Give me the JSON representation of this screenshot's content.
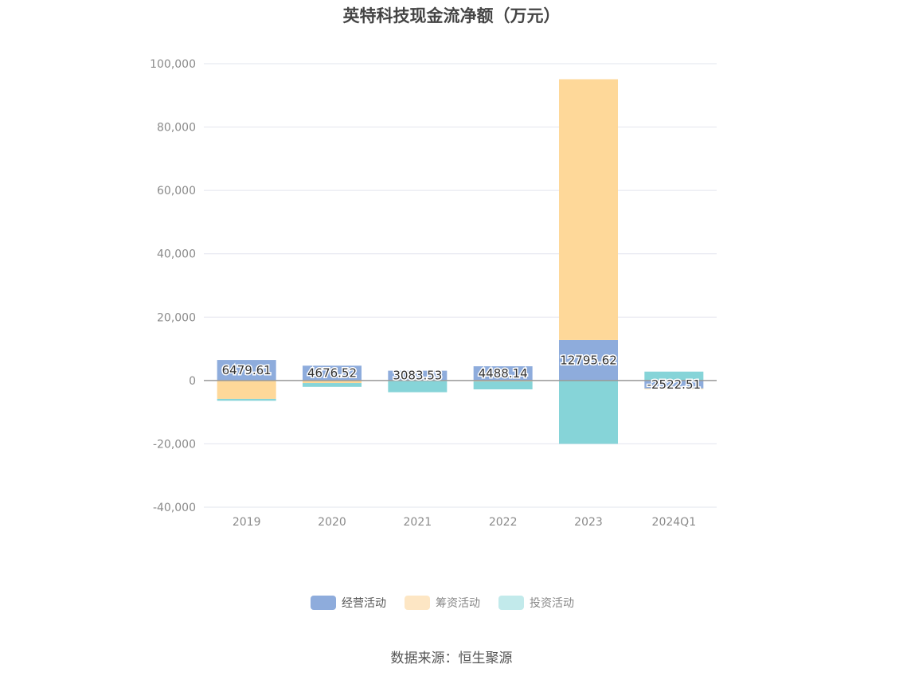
{
  "title": "英特科技现金流净额（万元）",
  "source_note": "数据来源：恒生聚源",
  "chart_data": {
    "type": "bar",
    "stacked": true,
    "title": "英特科技现金流净额（万元）",
    "xlabel": "",
    "ylabel": "",
    "categories": [
      "2019",
      "2020",
      "2021",
      "2022",
      "2023",
      "2024Q1"
    ],
    "ylim": [
      -40000,
      100000
    ],
    "yticks": [
      -40000,
      -20000,
      0,
      20000,
      40000,
      60000,
      80000,
      100000
    ],
    "ytick_labels": [
      "-40,000",
      "-20,000",
      "0",
      "20,000",
      "40,000",
      "60,000",
      "80,000",
      "100,000"
    ],
    "grid": true,
    "legend_position": "bottom-center",
    "series": [
      {
        "name": "经营活动",
        "color": "#8eacdc",
        "values": [
          6479.61,
          4676.52,
          3083.53,
          4488.14,
          12795.62,
          -2522.51
        ]
      },
      {
        "name": "筹资活动",
        "color": "#fed899",
        "values": [
          -5800,
          -800,
          -200,
          -300,
          82300,
          -200
        ]
      },
      {
        "name": "投资活动",
        "color": "#86d4d8",
        "values": [
          -600,
          -1200,
          -3500,
          -2500,
          -20000,
          2800
        ]
      }
    ],
    "data_labels": [
      "6479.61",
      "4676.52",
      "3083.53",
      "4488.14",
      "12795.62",
      "-2522.51"
    ]
  },
  "legend": [
    {
      "name": "经营活动",
      "swatch": "#8eacdc",
      "text_color": "#555555"
    },
    {
      "name": "筹资活动",
      "swatch": "#fde6c4",
      "text_color": "#888888"
    },
    {
      "name": "投资活动",
      "swatch": "#c2eaeb",
      "text_color": "#888888"
    }
  ]
}
